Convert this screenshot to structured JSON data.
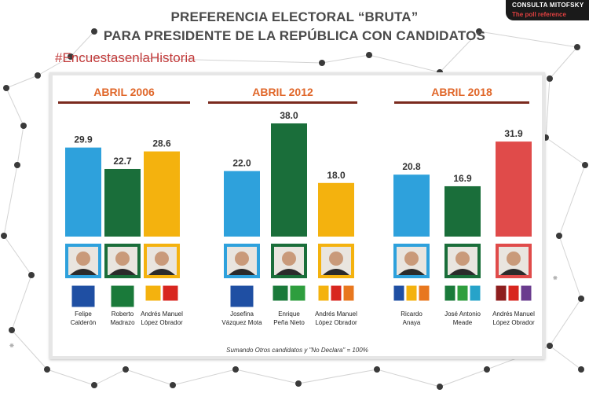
{
  "header": {
    "title_line1": "PREFERENCIA ELECTORAL “BRUTA”",
    "title_line2": "PARA PRESIDENTE DE LA REPÚBLICA CON CANDIDATOS",
    "hashtag": "#EncuestasenlaHistoria",
    "brand_line1": "CONSULTA MITOFSKY",
    "brand_line2": "The poll reference"
  },
  "footnote": "Sumando  Otros candidatos y \"No Declara\" = 100%",
  "colors": {
    "blue": "#2ea1dc",
    "green": "#1a6e3a",
    "yellow": "#f4b20e",
    "red": "#e04b4a",
    "header_text": "#e0672a",
    "header_line": "#7a2a1e"
  },
  "chart_data": [
    {
      "type": "bar",
      "title": "ABRIL 2006",
      "categories": [
        "Felipe Calderón",
        "Roberto Madrazo",
        "Andrés  Manuel López  Obrador"
      ],
      "label_lines": [
        [
          "Felipe",
          "Calderón"
        ],
        [
          "Roberto",
          "Madrazo"
        ],
        [
          "Andrés  Manuel",
          "López  Obrador"
        ]
      ],
      "values": [
        29.9,
        22.7,
        28.6
      ],
      "bar_colors": [
        "blue",
        "green",
        "yellow"
      ],
      "party_icons": [
        [
          "PAN"
        ],
        [
          "PRI-PVEM"
        ],
        [
          "PRD",
          "PT"
        ]
      ]
    },
    {
      "type": "bar",
      "title": "ABRIL 2012",
      "categories": [
        "Josefina Vázquez Mota",
        "Enrique Peña Nieto",
        "Andrés  Manuel López  Obrador"
      ],
      "label_lines": [
        [
          "Josefina",
          "Vázquez Mota"
        ],
        [
          "Enrique",
          "Peña Nieto"
        ],
        [
          "Andrés  Manuel",
          "López  Obrador"
        ]
      ],
      "values": [
        22.0,
        38.0,
        18.0
      ],
      "bar_colors": [
        "blue",
        "green",
        "yellow"
      ],
      "party_icons": [
        [
          "PAN"
        ],
        [
          "PRI",
          "VERDE"
        ],
        [
          "PRD",
          "PT",
          "MC"
        ]
      ]
    },
    {
      "type": "bar",
      "title": "ABRIL 2018",
      "categories": [
        "Ricardo Anaya",
        "José Antonio Meade",
        "Andrés  Manuel López  Obrador"
      ],
      "label_lines": [
        [
          "Ricardo",
          "Anaya"
        ],
        [
          "José Antonio",
          "Meade"
        ],
        [
          "Andrés  Manuel",
          "López  Obrador"
        ]
      ],
      "values": [
        20.8,
        16.9,
        31.9
      ],
      "bar_colors": [
        "blue",
        "green",
        "red"
      ],
      "party_icons": [
        [
          "PAN",
          "PRD",
          "MC"
        ],
        [
          "PRI",
          "VERDE",
          "NA"
        ],
        [
          "morena",
          "PT",
          "PES"
        ]
      ]
    }
  ]
}
